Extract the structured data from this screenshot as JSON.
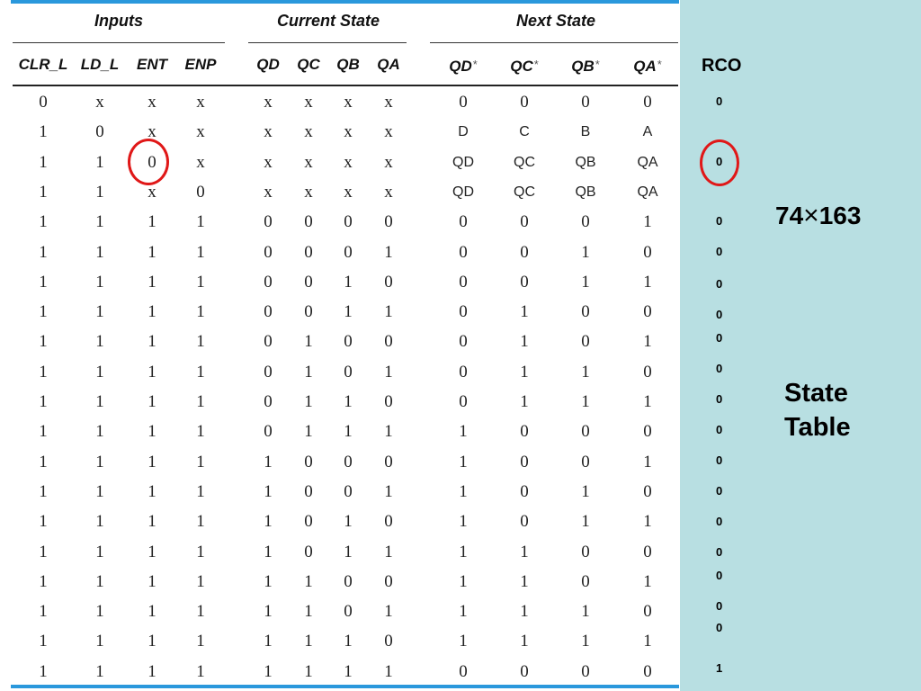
{
  "table": {
    "groups": [
      {
        "id": "inputs",
        "label": "Inputs"
      },
      {
        "id": "current",
        "label": "Current State"
      },
      {
        "id": "next",
        "label": "Next State"
      }
    ],
    "columns": [
      {
        "id": "clr_l",
        "label": "CLR_L",
        "group": "inputs",
        "star": ""
      },
      {
        "id": "ld_l",
        "label": "LD_L",
        "group": "inputs",
        "star": ""
      },
      {
        "id": "ent",
        "label": "ENT",
        "group": "inputs",
        "star": ""
      },
      {
        "id": "enp",
        "label": "ENP",
        "group": "inputs",
        "star": ""
      },
      {
        "id": "qd",
        "label": "QD",
        "group": "current",
        "star": ""
      },
      {
        "id": "qc",
        "label": "QC",
        "group": "current",
        "star": ""
      },
      {
        "id": "qb",
        "label": "QB",
        "group": "current",
        "star": ""
      },
      {
        "id": "qa",
        "label": "QA",
        "group": "current",
        "star": ""
      },
      {
        "id": "qd_next",
        "label": "QD",
        "group": "next",
        "star": "*"
      },
      {
        "id": "qc_next",
        "label": "QC",
        "group": "next",
        "star": "*"
      },
      {
        "id": "qb_next",
        "label": "QB",
        "group": "next",
        "star": "*"
      },
      {
        "id": "qa_next",
        "label": "QA",
        "group": "next",
        "star": "*"
      }
    ],
    "rows": [
      [
        "0",
        "x",
        "x",
        "x",
        "x",
        "x",
        "x",
        "x",
        "0",
        "0",
        "0",
        "0"
      ],
      [
        "1",
        "0",
        "x",
        "x",
        "x",
        "x",
        "x",
        "x",
        "D",
        "C",
        "B",
        "A"
      ],
      [
        "1",
        "1",
        "0",
        "x",
        "x",
        "x",
        "x",
        "x",
        "QD",
        "QC",
        "QB",
        "QA"
      ],
      [
        "1",
        "1",
        "x",
        "0",
        "x",
        "x",
        "x",
        "x",
        "QD",
        "QC",
        "QB",
        "QA"
      ],
      [
        "1",
        "1",
        "1",
        "1",
        "0",
        "0",
        "0",
        "0",
        "0",
        "0",
        "0",
        "1"
      ],
      [
        "1",
        "1",
        "1",
        "1",
        "0",
        "0",
        "0",
        "1",
        "0",
        "0",
        "1",
        "0"
      ],
      [
        "1",
        "1",
        "1",
        "1",
        "0",
        "0",
        "1",
        "0",
        "0",
        "0",
        "1",
        "1"
      ],
      [
        "1",
        "1",
        "1",
        "1",
        "0",
        "0",
        "1",
        "1",
        "0",
        "1",
        "0",
        "0"
      ],
      [
        "1",
        "1",
        "1",
        "1",
        "0",
        "1",
        "0",
        "0",
        "0",
        "1",
        "0",
        "1"
      ],
      [
        "1",
        "1",
        "1",
        "1",
        "0",
        "1",
        "0",
        "1",
        "0",
        "1",
        "1",
        "0"
      ],
      [
        "1",
        "1",
        "1",
        "1",
        "0",
        "1",
        "1",
        "0",
        "0",
        "1",
        "1",
        "1"
      ],
      [
        "1",
        "1",
        "1",
        "1",
        "0",
        "1",
        "1",
        "1",
        "1",
        "0",
        "0",
        "0"
      ],
      [
        "1",
        "1",
        "1",
        "1",
        "1",
        "0",
        "0",
        "0",
        "1",
        "0",
        "0",
        "1"
      ],
      [
        "1",
        "1",
        "1",
        "1",
        "1",
        "0",
        "0",
        "1",
        "1",
        "0",
        "1",
        "0"
      ],
      [
        "1",
        "1",
        "1",
        "1",
        "1",
        "0",
        "1",
        "0",
        "1",
        "0",
        "1",
        "1"
      ],
      [
        "1",
        "1",
        "1",
        "1",
        "1",
        "0",
        "1",
        "1",
        "1",
        "1",
        "0",
        "0"
      ],
      [
        "1",
        "1",
        "1",
        "1",
        "1",
        "1",
        "0",
        "0",
        "1",
        "1",
        "0",
        "1"
      ],
      [
        "1",
        "1",
        "1",
        "1",
        "1",
        "1",
        "0",
        "1",
        "1",
        "1",
        "1",
        "0"
      ],
      [
        "1",
        "1",
        "1",
        "1",
        "1",
        "1",
        "1",
        "0",
        "1",
        "1",
        "1",
        "1"
      ],
      [
        "1",
        "1",
        "1",
        "1",
        "1",
        "1",
        "1",
        "1",
        "0",
        "0",
        "0",
        "0"
      ]
    ],
    "highlighted_cell": {
      "row": 2,
      "column": "ent"
    }
  },
  "rco": {
    "label": "RCO",
    "values": [
      "0",
      "0",
      "0",
      "0",
      "0",
      "0",
      "0",
      "0",
      "0",
      "0",
      "0",
      "0",
      "0",
      "0",
      "0",
      "0",
      "0",
      "1"
    ],
    "highlighted_index": 0
  },
  "chip_title": {
    "number": "74",
    "separator": "×",
    "part": "163"
  },
  "caption": "State Table",
  "colors": {
    "accent_bar": "#2a98dc",
    "side_panel": "#b8dfe2",
    "highlight_circle": "#e01818"
  }
}
